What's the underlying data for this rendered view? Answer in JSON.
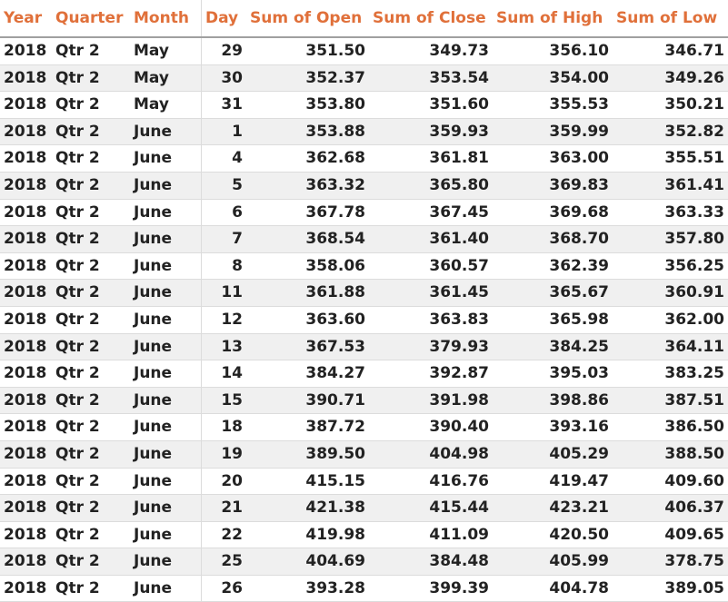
{
  "colors": {
    "header_text": "#e0703a",
    "body_text": "#222222",
    "alt_row": "#f0f0f0"
  },
  "headers": [
    "Year",
    "Quarter",
    "Month",
    "Day",
    "Sum of Open",
    "Sum of Close",
    "Sum of High",
    "Sum of Low"
  ],
  "rows": [
    [
      "2018",
      "Qtr 2",
      "May",
      "29",
      "351.50",
      "349.73",
      "356.10",
      "346.71"
    ],
    [
      "2018",
      "Qtr 2",
      "May",
      "30",
      "352.37",
      "353.54",
      "354.00",
      "349.26"
    ],
    [
      "2018",
      "Qtr 2",
      "May",
      "31",
      "353.80",
      "351.60",
      "355.53",
      "350.21"
    ],
    [
      "2018",
      "Qtr 2",
      "June",
      "1",
      "353.88",
      "359.93",
      "359.99",
      "352.82"
    ],
    [
      "2018",
      "Qtr 2",
      "June",
      "4",
      "362.68",
      "361.81",
      "363.00",
      "355.51"
    ],
    [
      "2018",
      "Qtr 2",
      "June",
      "5",
      "363.32",
      "365.80",
      "369.83",
      "361.41"
    ],
    [
      "2018",
      "Qtr 2",
      "June",
      "6",
      "367.78",
      "367.45",
      "369.68",
      "363.33"
    ],
    [
      "2018",
      "Qtr 2",
      "June",
      "7",
      "368.54",
      "361.40",
      "368.70",
      "357.80"
    ],
    [
      "2018",
      "Qtr 2",
      "June",
      "8",
      "358.06",
      "360.57",
      "362.39",
      "356.25"
    ],
    [
      "2018",
      "Qtr 2",
      "June",
      "11",
      "361.88",
      "361.45",
      "365.67",
      "360.91"
    ],
    [
      "2018",
      "Qtr 2",
      "June",
      "12",
      "363.60",
      "363.83",
      "365.98",
      "362.00"
    ],
    [
      "2018",
      "Qtr 2",
      "June",
      "13",
      "367.53",
      "379.93",
      "384.25",
      "364.11"
    ],
    [
      "2018",
      "Qtr 2",
      "June",
      "14",
      "384.27",
      "392.87",
      "395.03",
      "383.25"
    ],
    [
      "2018",
      "Qtr 2",
      "June",
      "15",
      "390.71",
      "391.98",
      "398.86",
      "387.51"
    ],
    [
      "2018",
      "Qtr 2",
      "June",
      "18",
      "387.72",
      "390.40",
      "393.16",
      "386.50"
    ],
    [
      "2018",
      "Qtr 2",
      "June",
      "19",
      "389.50",
      "404.98",
      "405.29",
      "388.50"
    ],
    [
      "2018",
      "Qtr 2",
      "June",
      "20",
      "415.15",
      "416.76",
      "419.47",
      "409.60"
    ],
    [
      "2018",
      "Qtr 2",
      "June",
      "21",
      "421.38",
      "415.44",
      "423.21",
      "406.37"
    ],
    [
      "2018",
      "Qtr 2",
      "June",
      "22",
      "419.98",
      "411.09",
      "420.50",
      "409.65"
    ],
    [
      "2018",
      "Qtr 2",
      "June",
      "25",
      "404.69",
      "384.48",
      "405.99",
      "378.75"
    ],
    [
      "2018",
      "Qtr 2",
      "June",
      "26",
      "393.28",
      "399.39",
      "404.78",
      "389.05"
    ]
  ]
}
